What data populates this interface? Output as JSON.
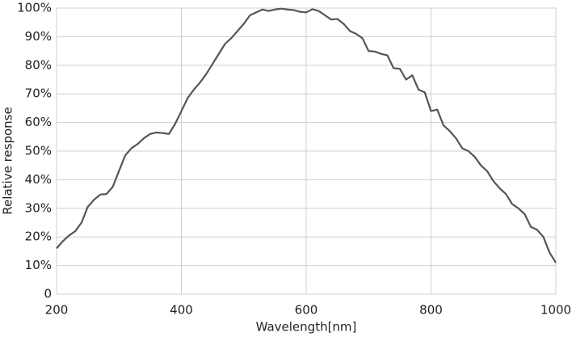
{
  "chart_data": {
    "type": "line",
    "x_label": "Wavelength[nm]",
    "y_label": "Relative response",
    "x": [
      200,
      210,
      220,
      230,
      240,
      250,
      260,
      270,
      280,
      290,
      300,
      310,
      320,
      330,
      340,
      350,
      360,
      370,
      380,
      390,
      400,
      410,
      420,
      430,
      440,
      450,
      460,
      470,
      480,
      490,
      500,
      510,
      520,
      530,
      540,
      550,
      560,
      570,
      580,
      590,
      600,
      610,
      620,
      630,
      640,
      650,
      660,
      670,
      680,
      690,
      700,
      710,
      720,
      730,
      740,
      750,
      760,
      770,
      780,
      790,
      800,
      810,
      820,
      830,
      840,
      850,
      860,
      870,
      880,
      890,
      900,
      910,
      920,
      930,
      940,
      950,
      960,
      970,
      980,
      990,
      1000
    ],
    "series": [
      {
        "name": "Relative response",
        "color": "#555555",
        "values": [
          16,
          18.5,
          20.5,
          22,
          25,
          30.5,
          33,
          34.8,
          35,
          37.5,
          43,
          48.5,
          51,
          52.5,
          54.5,
          56,
          56.5,
          56.3,
          56,
          59.5,
          64,
          68.5,
          71.5,
          74,
          77,
          80.5,
          84,
          87.5,
          89.5,
          92,
          94.5,
          97.5,
          98.5,
          99.5,
          99,
          99.5,
          99.8,
          99.5,
          99.3,
          98.7,
          98.5,
          99.6,
          99,
          97.5,
          96,
          96.2,
          94.5,
          92,
          91,
          89.5,
          85,
          84.8,
          84,
          83.5,
          79,
          78.8,
          75,
          76.5,
          71.5,
          70.5,
          64,
          64.5,
          59,
          57,
          54.5,
          51,
          50,
          48,
          45,
          43,
          39.5,
          37,
          35,
          31.5,
          30,
          28,
          23.5,
          22.5,
          20,
          14.5,
          11
        ]
      }
    ],
    "xlim": [
      200,
      1000
    ],
    "ylim": [
      0,
      100
    ],
    "xticks": [
      200,
      400,
      600,
      800,
      1000
    ],
    "yticks": [
      0,
      {
        "value": 10,
        "label": "10%"
      },
      {
        "value": 20,
        "label": "20%"
      },
      {
        "value": 30,
        "label": "30%"
      },
      {
        "value": 40,
        "label": "40%"
      },
      {
        "value": 50,
        "label": "50%"
      },
      {
        "value": 60,
        "label": "60%"
      },
      {
        "value": 70,
        "label": "70%"
      },
      {
        "value": 80,
        "label": "80%"
      },
      {
        "value": 90,
        "label": "90%"
      },
      {
        "value": 100,
        "label": "100%"
      }
    ],
    "grid": true
  }
}
